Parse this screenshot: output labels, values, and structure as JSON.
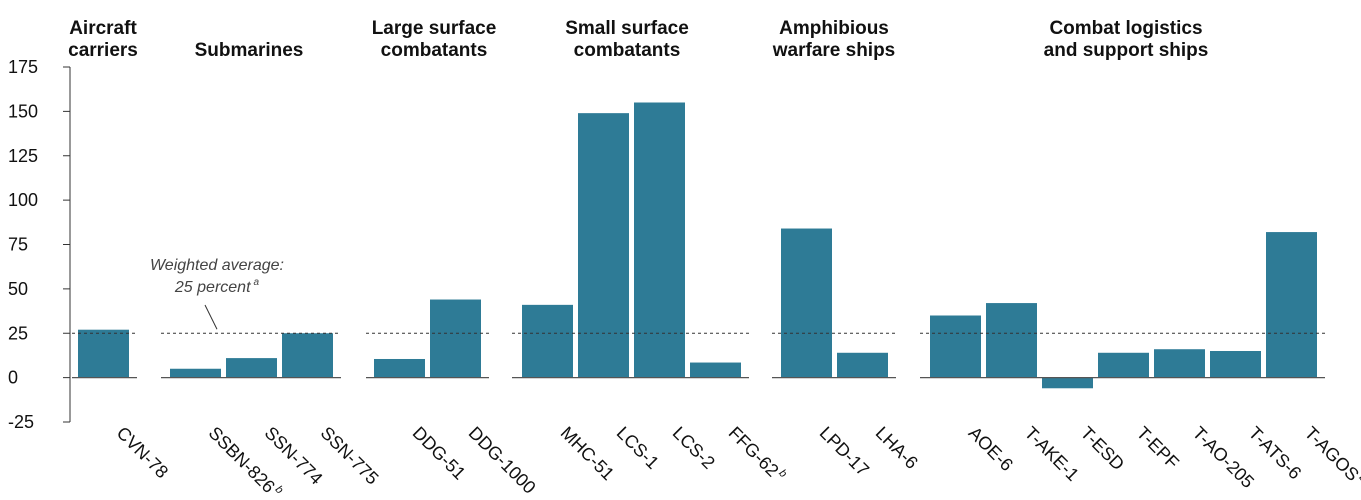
{
  "chart_data": {
    "type": "bar",
    "ylim": [
      -25,
      175
    ],
    "yticks": [
      -25,
      0,
      25,
      50,
      75,
      100,
      125,
      150,
      175
    ],
    "reference_line": {
      "value": 25,
      "label_line1": "Weighted average:",
      "label_line2": "25 percent",
      "label_sup": "a"
    },
    "bar_color": "#2e7b96",
    "groups": [
      {
        "title_lines": [
          "Aircraft",
          "carriers"
        ],
        "bars": [
          {
            "label": "CVN-78",
            "sup": "",
            "value": 27
          }
        ]
      },
      {
        "title_lines": [
          "Submarines"
        ],
        "bars": [
          {
            "label": "SSBN-826",
            "sup": "b",
            "value": 5
          },
          {
            "label": "SSN-774",
            "sup": "",
            "value": 11
          },
          {
            "label": "SSN-775",
            "sup": "",
            "value": 25
          }
        ]
      },
      {
        "title_lines": [
          "Large surface",
          "combatants"
        ],
        "bars": [
          {
            "label": "DDG-51",
            "sup": "",
            "value": 10.5
          },
          {
            "label": "DDG-1000",
            "sup": "",
            "value": 44
          }
        ]
      },
      {
        "title_lines": [
          "Small surface",
          "combatants"
        ],
        "bars": [
          {
            "label": "MHC-51",
            "sup": "",
            "value": 41
          },
          {
            "label": "LCS-1",
            "sup": "",
            "value": 149
          },
          {
            "label": "LCS-2",
            "sup": "",
            "value": 155
          },
          {
            "label": "FFG-62",
            "sup": "b",
            "value": 8.5
          }
        ]
      },
      {
        "title_lines": [
          "Amphibious",
          "warfare ships"
        ],
        "bars": [
          {
            "label": "LPD-17",
            "sup": "",
            "value": 84
          },
          {
            "label": "LHA-6",
            "sup": "",
            "value": 14
          }
        ]
      },
      {
        "title_lines": [
          "Combat logistics",
          "and support ships"
        ],
        "bars": [
          {
            "label": "AOE-6",
            "sup": "",
            "value": 35
          },
          {
            "label": "T-AKE-1",
            "sup": "",
            "value": 42
          },
          {
            "label": "T-ESD",
            "sup": "",
            "value": -6
          },
          {
            "label": "T-EPF",
            "sup": "",
            "value": 14
          },
          {
            "label": "T-AO-205",
            "sup": "",
            "value": 16
          },
          {
            "label": "T-ATS-6",
            "sup": "",
            "value": 15
          },
          {
            "label": "T-AGOS",
            "sup": "b",
            "value": 82
          }
        ]
      }
    ]
  }
}
